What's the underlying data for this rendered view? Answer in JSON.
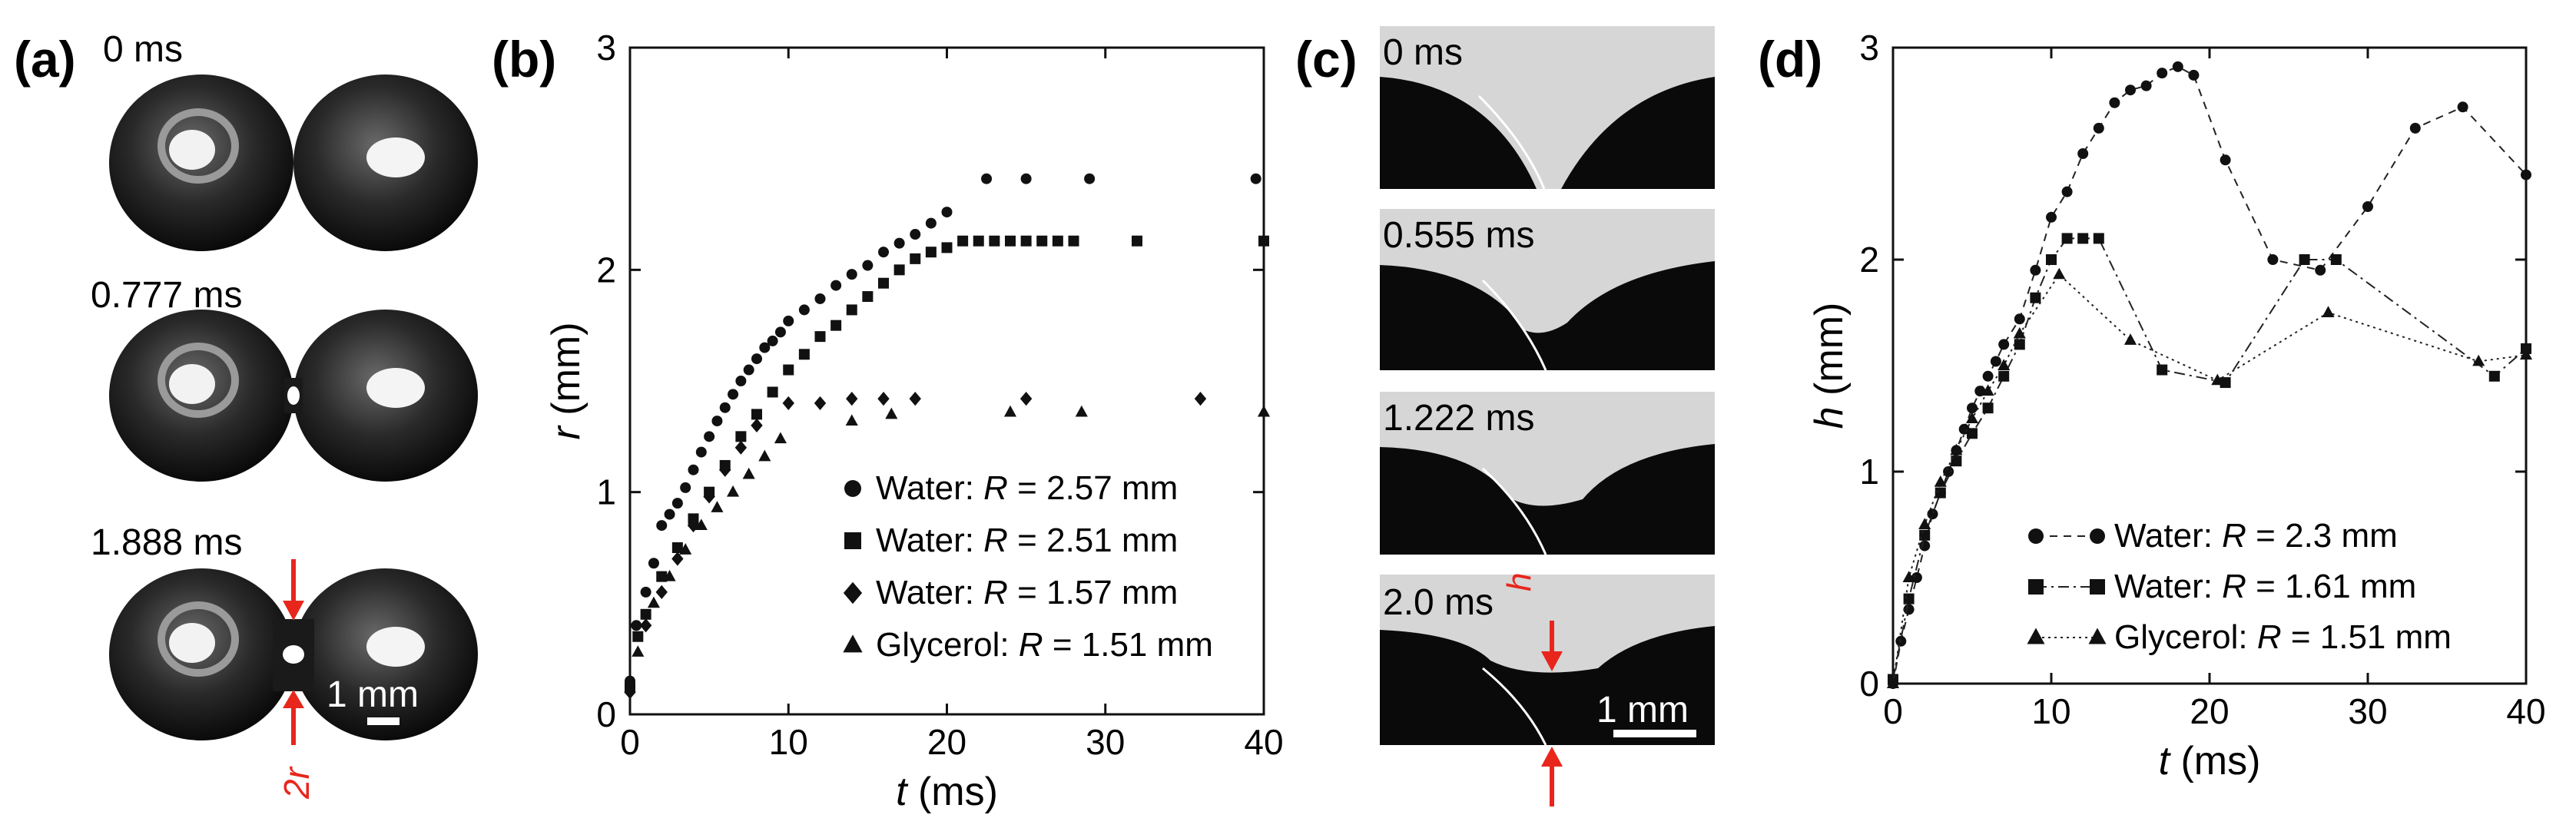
{
  "panel_labels": [
    "(a)",
    "(b)",
    "(c)",
    "(d)"
  ],
  "panel_a": {
    "frames": [
      "0 ms",
      "0.777 ms",
      "1.888 ms"
    ],
    "scale_bar": "1 mm",
    "annotation": "2r"
  },
  "panel_c": {
    "frames": [
      "0 ms",
      "0.555 ms",
      "1.222 ms",
      "2.0 ms"
    ],
    "scale_bar": "1 mm",
    "annotation": "h"
  },
  "colors": {
    "accent": "#e8261c",
    "marker": "#111111"
  },
  "chart_data": [
    {
      "id": "b",
      "type": "scatter",
      "xlabel": "t (ms)",
      "ylabel": "r (mm)",
      "xlim": [
        0,
        40
      ],
      "ylim": [
        0,
        3
      ],
      "xticks": [
        "0",
        "10",
        "20",
        "30",
        "40"
      ],
      "yticks": [
        "0",
        "1",
        "2",
        "3"
      ],
      "legend_location": "bottom-right",
      "series": [
        {
          "name": "Water: R = 2.57 mm",
          "prefix": "Water: ",
          "suffix": " = 2.57 mm",
          "marker": "circle",
          "x": [
            0,
            0.4,
            1,
            1.5,
            2,
            2.5,
            3,
            3.5,
            4,
            4.5,
            5,
            5.5,
            6,
            6.5,
            7,
            7.5,
            8,
            8.5,
            9,
            9.5,
            10,
            11,
            12,
            13,
            14,
            15,
            16,
            17,
            18,
            19,
            20,
            22.5,
            25,
            29,
            39.5
          ],
          "y": [
            0.15,
            0.4,
            0.55,
            0.68,
            0.85,
            0.9,
            0.95,
            1.02,
            1.1,
            1.18,
            1.25,
            1.32,
            1.38,
            1.44,
            1.5,
            1.55,
            1.6,
            1.65,
            1.68,
            1.72,
            1.77,
            1.82,
            1.87,
            1.93,
            1.98,
            2.02,
            2.08,
            2.12,
            2.16,
            2.21,
            2.26,
            2.41,
            2.41,
            2.41,
            2.41
          ]
        },
        {
          "name": "Water: R = 2.51 mm",
          "prefix": "Water: ",
          "suffix": " = 2.51 mm",
          "marker": "square",
          "x": [
            0,
            0.5,
            1,
            2,
            3,
            4,
            5,
            6,
            7,
            8,
            9,
            10,
            11,
            12,
            13,
            14,
            15,
            16,
            17,
            18,
            19,
            20,
            21,
            22,
            23,
            24,
            25,
            26,
            27,
            28,
            32,
            40
          ],
          "y": [
            0.12,
            0.35,
            0.45,
            0.62,
            0.75,
            0.88,
            1.0,
            1.12,
            1.25,
            1.35,
            1.45,
            1.55,
            1.62,
            1.7,
            1.75,
            1.82,
            1.88,
            1.94,
            2.0,
            2.05,
            2.08,
            2.1,
            2.13,
            2.13,
            2.13,
            2.13,
            2.13,
            2.13,
            2.13,
            2.13,
            2.13,
            2.13
          ]
        },
        {
          "name": "Water: R = 1.57 mm",
          "prefix": "Water: ",
          "suffix": " = 1.57 mm",
          "marker": "diamond",
          "x": [
            0,
            1,
            2,
            3,
            4,
            5,
            6,
            7,
            8,
            10,
            12,
            14,
            16,
            18,
            25,
            36
          ],
          "y": [
            0.1,
            0.4,
            0.55,
            0.7,
            0.85,
            0.98,
            1.1,
            1.2,
            1.3,
            1.4,
            1.4,
            1.42,
            1.42,
            1.42,
            1.42,
            1.42
          ]
        },
        {
          "name": "Glycerol: R = 1.51 mm",
          "prefix": "Glycerol: ",
          "suffix": " = 1.51 mm",
          "marker": "triangle",
          "x": [
            0.5,
            1.5,
            2.5,
            3.5,
            4.5,
            5.5,
            6.5,
            7.5,
            8.5,
            9.5,
            14,
            16.5,
            24,
            28.5,
            40
          ],
          "y": [
            0.28,
            0.5,
            0.62,
            0.74,
            0.85,
            0.93,
            1.0,
            1.08,
            1.16,
            1.24,
            1.32,
            1.35,
            1.36,
            1.36,
            1.36
          ]
        }
      ]
    },
    {
      "id": "d",
      "type": "line",
      "xlabel": "t (ms)",
      "ylabel": "h (mm)",
      "xlim": [
        0,
        40
      ],
      "ylim": [
        0,
        3
      ],
      "xticks": [
        "0",
        "10",
        "20",
        "30",
        "40"
      ],
      "yticks": [
        "0",
        "1",
        "2",
        "3"
      ],
      "legend_location": "bottom-right",
      "series": [
        {
          "name": "Water: R = 2.3 mm",
          "prefix": "Water: ",
          "suffix": " = 2.3 mm",
          "marker": "circle",
          "dash": "10,8",
          "x": [
            0,
            0.5,
            1,
            1.5,
            2,
            2.5,
            3,
            3.5,
            4,
            4.5,
            5,
            5.5,
            6,
            6.5,
            7,
            8,
            9,
            10,
            11,
            12,
            13,
            14,
            15,
            16,
            17,
            18,
            19,
            21,
            24,
            27,
            30,
            33,
            36,
            40
          ],
          "y": [
            0.0,
            0.2,
            0.35,
            0.5,
            0.65,
            0.8,
            0.9,
            1.0,
            1.1,
            1.2,
            1.3,
            1.38,
            1.45,
            1.52,
            1.6,
            1.72,
            1.95,
            2.2,
            2.32,
            2.5,
            2.62,
            2.74,
            2.8,
            2.82,
            2.88,
            2.91,
            2.87,
            2.47,
            2.0,
            1.95,
            2.25,
            2.62,
            2.72,
            2.4
          ]
        },
        {
          "name": "Water: R = 1.61 mm",
          "prefix": "Water: ",
          "suffix": " = 1.61 mm",
          "marker": "square",
          "dash": "14,6,3,6",
          "x": [
            0,
            1,
            2,
            3,
            4,
            5,
            6,
            7,
            8,
            9,
            10,
            11,
            12,
            13,
            17,
            21,
            26,
            28,
            38,
            40
          ],
          "y": [
            0.02,
            0.4,
            0.7,
            0.9,
            1.05,
            1.18,
            1.3,
            1.45,
            1.6,
            1.82,
            2.0,
            2.1,
            2.1,
            2.1,
            1.48,
            1.42,
            2.0,
            2.0,
            1.45,
            1.58
          ]
        },
        {
          "name": "Glycerol: R = 1.51 mm",
          "prefix": "Glycerol: ",
          "suffix": " = 1.51 mm",
          "marker": "triangle",
          "dash": "3,5",
          "x": [
            0,
            1,
            2,
            3,
            4,
            5,
            6,
            7,
            8,
            10.5,
            15,
            20.5,
            27.5,
            37,
            40
          ],
          "y": [
            0.0,
            0.5,
            0.75,
            0.95,
            1.1,
            1.25,
            1.38,
            1.5,
            1.65,
            1.93,
            1.62,
            1.43,
            1.75,
            1.52,
            1.55
          ]
        }
      ]
    }
  ]
}
